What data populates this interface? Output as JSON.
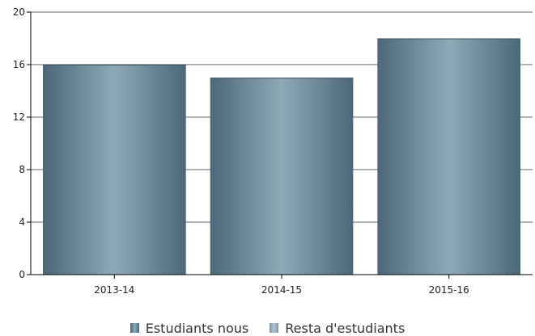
{
  "chart_data": {
    "type": "bar",
    "categories": [
      "2013-14",
      "2014-15",
      "2015-16"
    ],
    "series": [
      {
        "name": "Estudiants nous",
        "values": [
          16,
          15,
          18
        ]
      }
    ],
    "ylim": [
      0,
      20
    ],
    "yticks": [
      0,
      4,
      8,
      12,
      16,
      20
    ],
    "grid": true,
    "legend_position": "bottom",
    "legend": [
      {
        "label": "Estudiants nous",
        "color": "#4f6c7c"
      },
      {
        "label": "Resta d'estudiants",
        "color": "#8aa3b1"
      }
    ],
    "colors": {
      "bar_dark": "#4f6b7b",
      "bar_light": "#8ea8b6",
      "grid": "#666666",
      "axis": "#000000"
    }
  }
}
